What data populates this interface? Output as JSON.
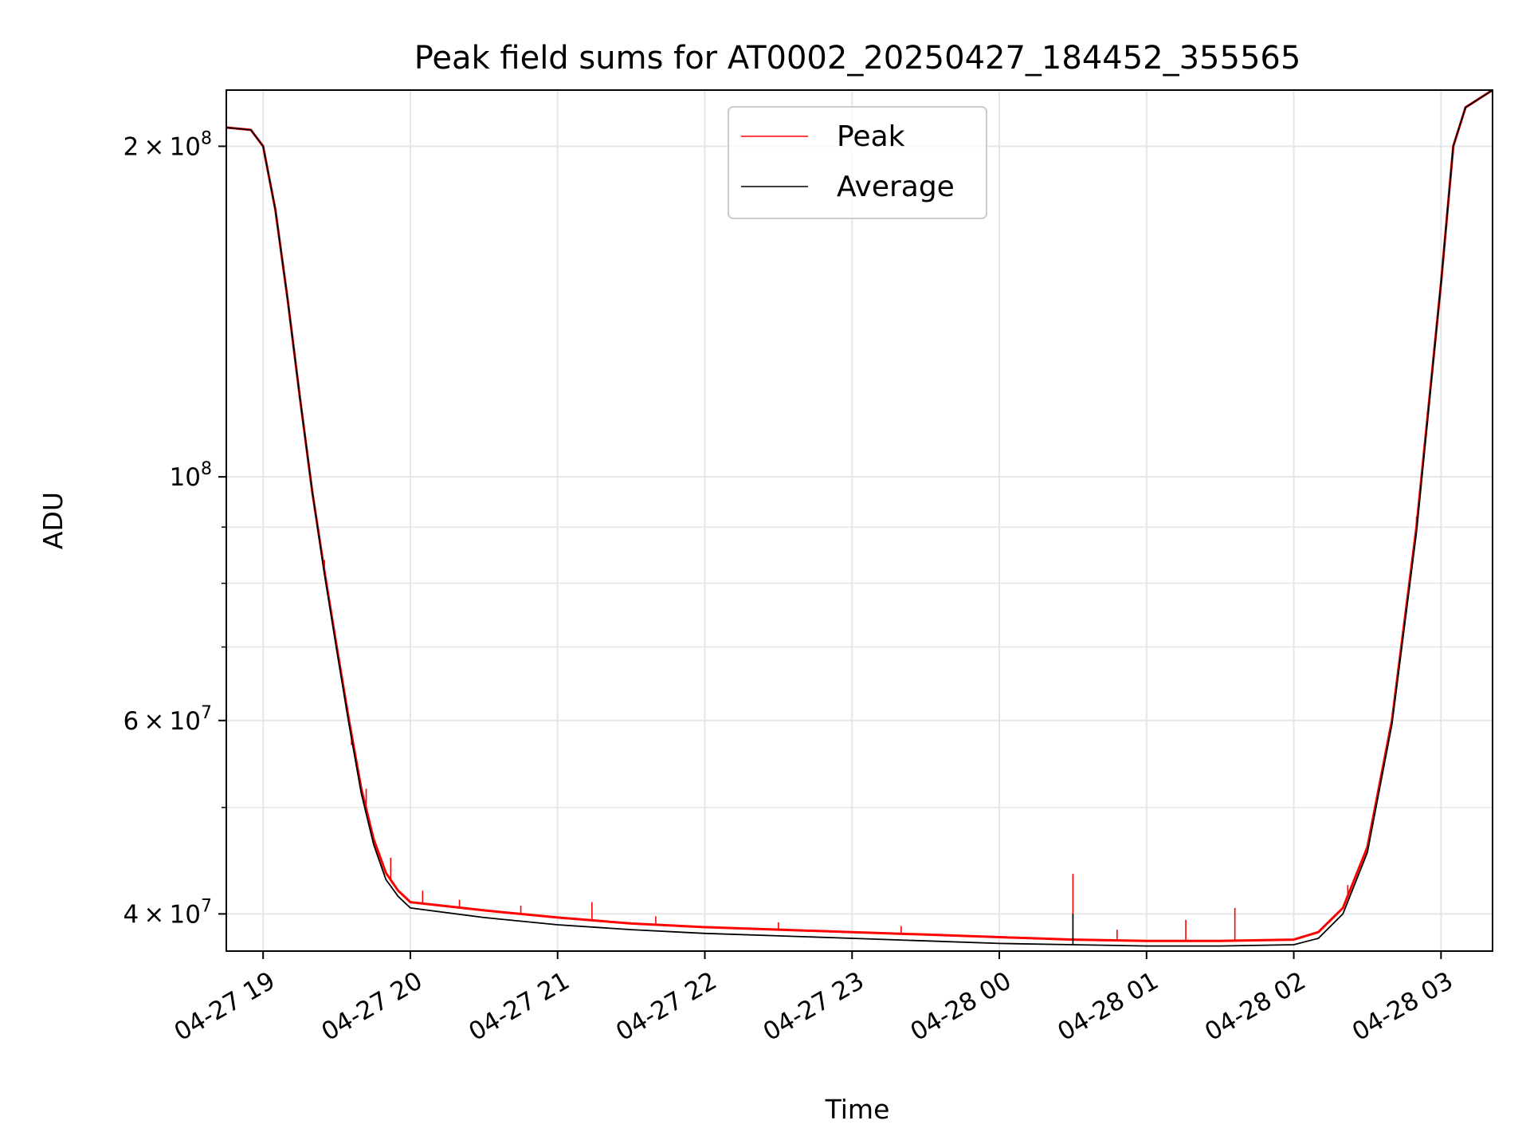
{
  "chart_data": {
    "type": "line",
    "title": "Peak field sums for AT0002_20250427_184452_355565",
    "xlabel": "Time",
    "ylabel": "ADU",
    "x_range": [
      "2025-04-27 18:45",
      "2025-04-28 03:21"
    ],
    "y_range": [
      37000000,
      225000000
    ],
    "y_scale": "log",
    "grid": true,
    "legend_position": "top-center",
    "x_ticks": [
      "04-27 19",
      "04-27 20",
      "04-27 21",
      "04-27 22",
      "04-27 23",
      "04-28 00",
      "04-28 01",
      "04-28 02",
      "04-28 03"
    ],
    "x_tick_times": [
      "2025-04-27 19:00",
      "2025-04-27 20:00",
      "2025-04-27 21:00",
      "2025-04-27 22:00",
      "2025-04-27 23:00",
      "2025-04-28 00:00",
      "2025-04-28 01:00",
      "2025-04-28 02:00",
      "2025-04-28 03:00"
    ],
    "y_ticks": [
      {
        "value": 200000000,
        "mantissa": "2",
        "exponent": "8"
      },
      {
        "value": 100000000,
        "mantissa": "",
        "exponent": "8"
      },
      {
        "value": 60000000,
        "mantissa": "6",
        "exponent": "7"
      },
      {
        "value": 40000000,
        "mantissa": "4",
        "exponent": "7"
      }
    ],
    "y_minor_ticks": [
      50000000,
      70000000,
      80000000,
      90000000
    ],
    "series": [
      {
        "name": "Peak",
        "color": "#ff0000",
        "points": [
          [
            "2025-04-27 18:45",
            208000000
          ],
          [
            "2025-04-27 18:55",
            207000000
          ],
          [
            "2025-04-27 19:00",
            200000000
          ],
          [
            "2025-04-27 19:05",
            175000000
          ],
          [
            "2025-04-27 19:10",
            145000000
          ],
          [
            "2025-04-27 19:15",
            118000000
          ],
          [
            "2025-04-27 19:20",
            97000000
          ],
          [
            "2025-04-27 19:25",
            82000000
          ],
          [
            "2025-04-27 19:30",
            70000000
          ],
          [
            "2025-04-27 19:35",
            60000000
          ],
          [
            "2025-04-27 19:40",
            52000000
          ],
          [
            "2025-04-27 19:45",
            46800000
          ],
          [
            "2025-04-27 19:50",
            43600000
          ],
          [
            "2025-04-27 19:55",
            42000000
          ],
          [
            "2025-04-27 20:00",
            41000000
          ],
          [
            "2025-04-27 20:30",
            40300000
          ],
          [
            "2025-04-27 21:00",
            39700000
          ],
          [
            "2025-04-27 21:30",
            39200000
          ],
          [
            "2025-04-27 22:00",
            38900000
          ],
          [
            "2025-04-27 22:30",
            38700000
          ],
          [
            "2025-04-27 23:00",
            38500000
          ],
          [
            "2025-04-27 23:30",
            38300000
          ],
          [
            "2025-04-28 00:00",
            38100000
          ],
          [
            "2025-04-28 00:30",
            37900000
          ],
          [
            "2025-04-28 01:00",
            37800000
          ],
          [
            "2025-04-28 01:30",
            37800000
          ],
          [
            "2025-04-28 02:00",
            37900000
          ],
          [
            "2025-04-28 02:10",
            38500000
          ],
          [
            "2025-04-28 02:20",
            40500000
          ],
          [
            "2025-04-28 02:30",
            46000000
          ],
          [
            "2025-04-28 02:40",
            60000000
          ],
          [
            "2025-04-28 02:50",
            90000000
          ],
          [
            "2025-04-28 03:00",
            150000000
          ],
          [
            "2025-04-28 03:05",
            200000000
          ],
          [
            "2025-04-28 03:10",
            217000000
          ],
          [
            "2025-04-28 03:21",
            225000000
          ]
        ],
        "spikes": [
          [
            "2025-04-27 19:25",
            84000000
          ],
          [
            "2025-04-27 19:36",
            57000000
          ],
          [
            "2025-04-27 19:42",
            52000000
          ],
          [
            "2025-04-27 19:52",
            45000000
          ],
          [
            "2025-04-27 20:05",
            42000000
          ],
          [
            "2025-04-27 20:20",
            41200000
          ],
          [
            "2025-04-27 20:45",
            40700000
          ],
          [
            "2025-04-27 21:14",
            41000000
          ],
          [
            "2025-04-27 21:40",
            39800000
          ],
          [
            "2025-04-27 22:30",
            39300000
          ],
          [
            "2025-04-27 23:20",
            39000000
          ],
          [
            "2025-04-28 00:30",
            43500000
          ],
          [
            "2025-04-28 00:48",
            38700000
          ],
          [
            "2025-04-28 01:16",
            39500000
          ],
          [
            "2025-04-28 01:36",
            40500000
          ],
          [
            "2025-04-28 02:22",
            42500000
          ],
          [
            "2025-04-28 02:50",
            92000000
          ]
        ]
      },
      {
        "name": "Average",
        "color": "#000000",
        "points": [
          [
            "2025-04-27 18:45",
            208000000
          ],
          [
            "2025-04-27 18:55",
            207000000
          ],
          [
            "2025-04-27 19:00",
            200000000
          ],
          [
            "2025-04-27 19:05",
            175000000
          ],
          [
            "2025-04-27 19:10",
            145000000
          ],
          [
            "2025-04-27 19:15",
            118000000
          ],
          [
            "2025-04-27 19:20",
            97000000
          ],
          [
            "2025-04-27 19:25",
            81500000
          ],
          [
            "2025-04-27 19:30",
            69500000
          ],
          [
            "2025-04-27 19:35",
            59500000
          ],
          [
            "2025-04-27 19:40",
            51500000
          ],
          [
            "2025-04-27 19:45",
            46300000
          ],
          [
            "2025-04-27 19:50",
            43000000
          ],
          [
            "2025-04-27 19:55",
            41500000
          ],
          [
            "2025-04-27 20:00",
            40500000
          ],
          [
            "2025-04-27 20:30",
            39700000
          ],
          [
            "2025-04-27 21:00",
            39100000
          ],
          [
            "2025-04-27 21:30",
            38700000
          ],
          [
            "2025-04-27 22:00",
            38400000
          ],
          [
            "2025-04-27 22:30",
            38200000
          ],
          [
            "2025-04-27 23:00",
            38000000
          ],
          [
            "2025-04-27 23:30",
            37800000
          ],
          [
            "2025-04-28 00:00",
            37600000
          ],
          [
            "2025-04-28 00:30",
            37500000
          ],
          [
            "2025-04-28 01:00",
            37400000
          ],
          [
            "2025-04-28 01:30",
            37400000
          ],
          [
            "2025-04-28 02:00",
            37500000
          ],
          [
            "2025-04-28 02:10",
            38000000
          ],
          [
            "2025-04-28 02:20",
            40000000
          ],
          [
            "2025-04-28 02:30",
            45500000
          ],
          [
            "2025-04-28 02:40",
            59500000
          ],
          [
            "2025-04-28 02:50",
            89000000
          ],
          [
            "2025-04-28 03:00",
            150000000
          ],
          [
            "2025-04-28 03:05",
            200000000
          ],
          [
            "2025-04-28 03:10",
            217000000
          ],
          [
            "2025-04-28 03:21",
            225000000
          ]
        ],
        "spikes": [
          [
            "2025-04-28 00:30",
            40000000
          ]
        ]
      }
    ]
  }
}
